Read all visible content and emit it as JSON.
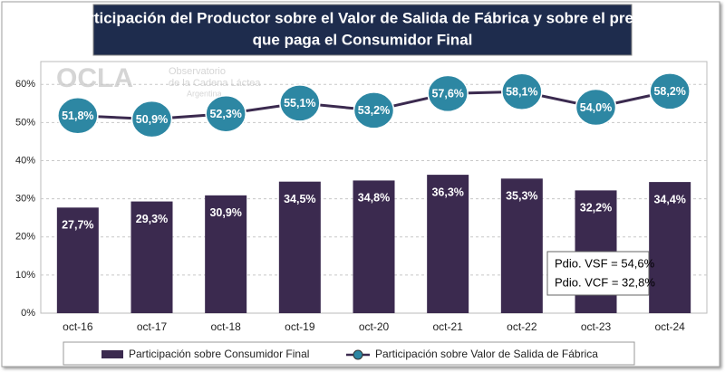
{
  "chart_data": {
    "type": "combo",
    "title": [
      "Participación del Productor sobre el Valor de Salida de Fábrica y sobre el precio",
      "que paga el Consumidor Final"
    ],
    "categories": [
      "oct-16",
      "oct-17",
      "oct-18",
      "oct-19",
      "oct-20",
      "oct-21",
      "oct-22",
      "oct-23",
      "oct-24"
    ],
    "series": [
      {
        "name": "Participación sobre Consumidor Final",
        "type": "bar",
        "color": "#3b2a4f",
        "values": [
          27.7,
          29.3,
          30.9,
          34.5,
          34.8,
          36.3,
          35.3,
          32.2,
          34.4
        ],
        "value_labels": [
          "27,7%",
          "29,3%",
          "30,9%",
          "34,5%",
          "34,8%",
          "36,3%",
          "35,3%",
          "32,2%",
          "34,4%"
        ]
      },
      {
        "name": "Participación sobre Valor de Salida de Fábrica",
        "type": "line",
        "color": "#3b2a4f",
        "marker_color": "#2d87a3",
        "values": [
          51.8,
          50.9,
          52.3,
          55.1,
          53.2,
          57.6,
          58.1,
          54.0,
          58.2
        ],
        "value_labels": [
          "51,8%",
          "50,9%",
          "52,3%",
          "55,1%",
          "53,2%",
          "57,6%",
          "58,1%",
          "54,0%",
          "58,2%"
        ]
      }
    ],
    "ylim": [
      0,
      66
    ],
    "yticks": [
      {
        "value": 0,
        "label": "0%"
      },
      {
        "value": 10,
        "label": "10%"
      },
      {
        "value": 20,
        "label": "20%"
      },
      {
        "value": 30,
        "label": "30%"
      },
      {
        "value": 40,
        "label": "40%"
      },
      {
        "value": 50,
        "label": "50%"
      },
      {
        "value": 60,
        "label": "60%"
      }
    ],
    "grid": true,
    "annotations": [
      "Pdio. VSF = 54,6%",
      "Pdio. VCF = 32,8%"
    ]
  },
  "logo": {
    "name": "OCLA",
    "lines": [
      "Observatorio",
      "de la Cadena Láctea",
      "Argentina"
    ]
  }
}
